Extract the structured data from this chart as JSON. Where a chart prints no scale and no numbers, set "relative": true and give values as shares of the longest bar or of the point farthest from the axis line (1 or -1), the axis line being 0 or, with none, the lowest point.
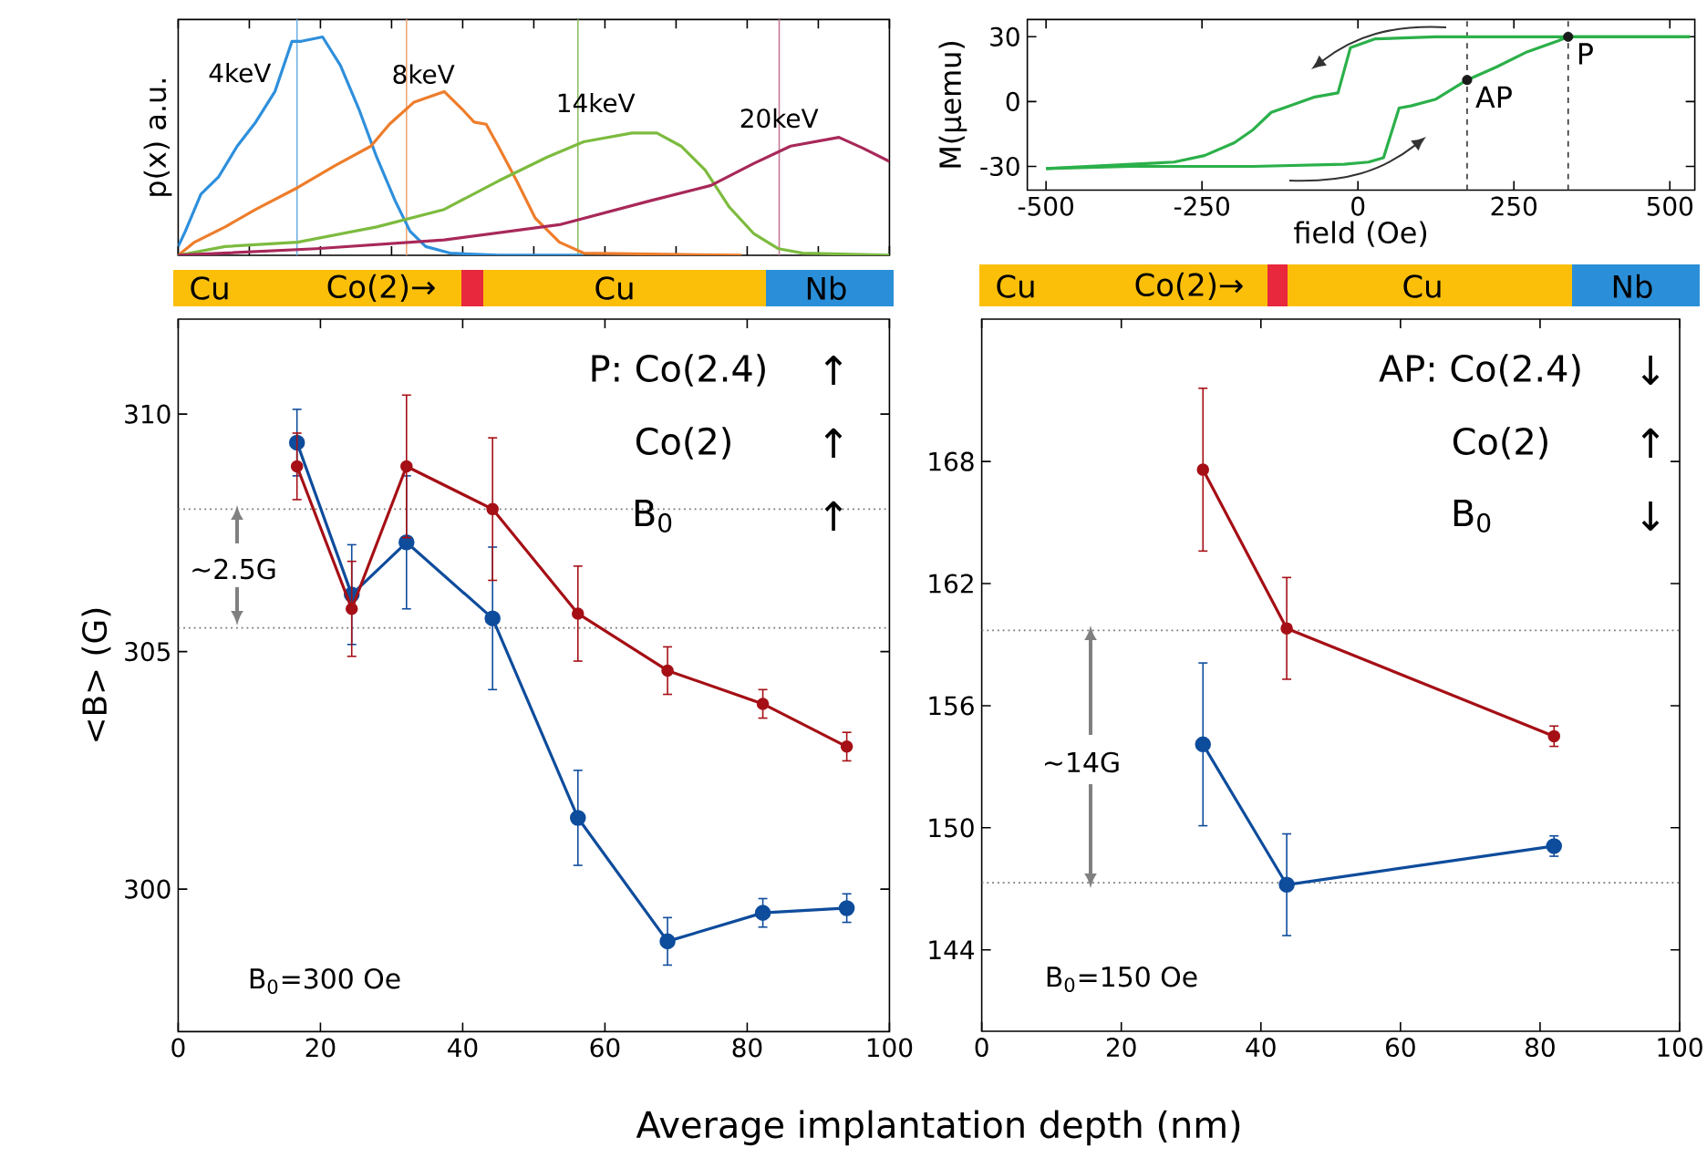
{
  "chart_data": [
    {
      "type": "line",
      "ylabel": "p(x) a.u.",
      "relative": true,
      "xlim": [
        0,
        100
      ],
      "xticks": [
        0,
        10,
        20,
        30,
        40,
        50,
        60,
        70,
        80,
        90,
        100
      ],
      "tick_labels": false,
      "series": [
        {
          "name": "4keV",
          "color": "#2e8fdc",
          "x": [
            0,
            1.0,
            3.2,
            5.7,
            8.3,
            10.9,
            13.6,
            16,
            17.3,
            20.3,
            22.8,
            25.4,
            27.9,
            30.5,
            32.6,
            34.8,
            38.2,
            45,
            57
          ],
          "values": [
            0.04,
            0.11,
            0.28,
            0.36,
            0.5,
            0.61,
            0.75,
            0.98,
            0.98,
            1.0,
            0.87,
            0.67,
            0.45,
            0.25,
            0.11,
            0.04,
            0.01,
            0,
            0
          ]
        },
        {
          "name": "8keV",
          "color": "#ee7d2b",
          "x": [
            0,
            2.3,
            6.6,
            10.9,
            16.8,
            22,
            27.1,
            29.7,
            33.1,
            37.4,
            39.9,
            41.6,
            43.3,
            45,
            47.6,
            50.2,
            53.6,
            57,
            79.2
          ],
          "values": [
            0,
            0.06,
            0.13,
            0.21,
            0.31,
            0.41,
            0.5,
            0.6,
            0.7,
            0.75,
            0.67,
            0.61,
            0.6,
            0.5,
            0.34,
            0.17,
            0.06,
            0.01,
            0
          ]
        },
        {
          "name": "14keV",
          "color": "#7dbb3f",
          "x": [
            0,
            6.6,
            16.8,
            27.9,
            37.4,
            45,
            51.9,
            57,
            63.8,
            67.3,
            70.7,
            74.1,
            77.5,
            80.9,
            84.4,
            87.8,
            100
          ],
          "values": [
            0,
            0.04,
            0.06,
            0.13,
            0.21,
            0.34,
            0.45,
            0.52,
            0.56,
            0.56,
            0.5,
            0.39,
            0.22,
            0.1,
            0.03,
            0.01,
            0
          ]
        },
        {
          "name": "20keV",
          "color": "#a8285a",
          "x": [
            0,
            19.4,
            37.4,
            53.6,
            66.4,
            74.9,
            80.9,
            86.1,
            92.9,
            96.3,
            100
          ],
          "values": [
            0,
            0.03,
            0.07,
            0.14,
            0.25,
            0.32,
            0.42,
            0.5,
            0.54,
            0.49,
            0.43
          ]
        }
      ],
      "ref_lines": [
        {
          "axis": "x",
          "value": 16.7,
          "color": "#6fb0e6"
        },
        {
          "axis": "x",
          "value": 32.1,
          "color": "#f0a878"
        },
        {
          "axis": "x",
          "value": 56.2,
          "color": "#8cc060"
        },
        {
          "axis": "x",
          "value": 84.5,
          "color": "#c47a98"
        }
      ],
      "annotations": [
        "Cu",
        "Co(2)→",
        "Cu",
        "Nb"
      ]
    },
    {
      "type": "line",
      "xlabel": "field (Oe)",
      "ylabel": "M(μemu)",
      "xlim": [
        -530,
        540
      ],
      "ylim": [
        -41,
        38
      ],
      "xticks": [
        -500,
        -250,
        0,
        250,
        500
      ],
      "yticks": [
        -30,
        0,
        30
      ],
      "series": [
        {
          "color": "#2bb04a",
          "x": [
            -500,
            -363,
            -168,
            -22,
            17,
            41,
            66,
            85,
            124,
            175,
            222,
            271,
            320,
            337,
            532
          ],
          "values": [
            -31,
            -30,
            -30,
            -29,
            -28,
            -26,
            -3,
            -2,
            1,
            10,
            16,
            23,
            28,
            30,
            30
          ]
        },
        {
          "color": "#2bb04a",
          "x": [
            532,
            339,
            124,
            27,
            -12,
            -32,
            -71,
            -110,
            -139,
            -168,
            -198,
            -246,
            -295,
            -363,
            -500
          ],
          "values": [
            30,
            30,
            30,
            29,
            25,
            4,
            2,
            -2,
            -5,
            -13,
            -19,
            -25,
            -28,
            -29,
            -31
          ]
        },
        {
          "type": "scatter",
          "marker": "circle",
          "color": "#1a1a1a",
          "x": [
            175,
            337
          ],
          "values": [
            10,
            30
          ]
        }
      ],
      "ref_lines": [
        {
          "axis": "x",
          "value": 175,
          "color": "#333333",
          "line_style": "dashed"
        },
        {
          "axis": "x",
          "value": 337,
          "color": "#333333",
          "line_style": "dashed"
        }
      ],
      "annotations": [
        "Cu",
        "Co(2)→",
        "Cu",
        "Nb",
        {
          "text": "AP",
          "x": 175,
          "y": 10
        },
        {
          "text": "P",
          "x": 337,
          "y": 30
        }
      ]
    },
    {
      "type": "line",
      "xlabel": "Average implantation depth (nm)",
      "ylabel": "<B> (G)",
      "xlim": [
        0,
        100
      ],
      "ylim": [
        297,
        312
      ],
      "xticks": [
        0,
        20,
        40,
        60,
        80,
        100
      ],
      "yticks": [
        300,
        305,
        310
      ],
      "marker": "circle",
      "x": [
        16.7,
        24.4,
        32.1,
        44.2,
        56.2,
        68.8,
        82.2,
        94.0
      ],
      "series": [
        {
          "color": "#0e4c9c",
          "values": [
            309.4,
            306.2,
            307.3,
            305.7,
            301.5,
            298.9,
            299.5,
            299.6
          ],
          "errors": [
            0.7,
            1.05,
            1.4,
            1.5,
            1.0,
            0.5,
            0.3,
            0.3
          ]
        },
        {
          "color": "#a50f15",
          "values": [
            308.9,
            305.9,
            308.9,
            308.0,
            305.8,
            304.6,
            303.9,
            303.0
          ],
          "errors": [
            0.7,
            1.0,
            1.5,
            1.5,
            1.0,
            0.5,
            0.3,
            0.3
          ]
        }
      ],
      "ref_lines": [
        {
          "axis": "y",
          "value": 308.0,
          "color": "#777777",
          "line_style": "dotted"
        },
        {
          "axis": "y",
          "value": 305.5,
          "color": "#777777",
          "line_style": "dotted"
        }
      ],
      "annotations": [
        "P: Co(2.4)",
        "Co(2)",
        "B$_{0}$",
        "↑",
        "↑",
        "↑",
        "B$_{0}$=300 Oe",
        "~2.5G"
      ]
    },
    {
      "type": "line",
      "xlim": [
        0,
        100
      ],
      "ylim": [
        140,
        175
      ],
      "xticks": [
        0,
        20,
        40,
        60,
        80,
        100
      ],
      "yticks": [
        144,
        150,
        156,
        162,
        168
      ],
      "marker": "circle",
      "x": [
        31.7,
        43.7,
        82.0
      ],
      "series": [
        {
          "color": "#0e4c9c",
          "values": [
            154.1,
            147.2,
            149.1
          ],
          "errors": [
            4.0,
            2.5,
            0.5
          ]
        },
        {
          "color": "#a50f15",
          "values": [
            167.6,
            159.8,
            154.5
          ],
          "errors": [
            4.0,
            2.5,
            0.5
          ]
        }
      ],
      "ref_lines": [
        {
          "axis": "y",
          "value": 159.7,
          "color": "#777777",
          "line_style": "dotted"
        },
        {
          "axis": "y",
          "value": 147.3,
          "color": "#777777",
          "line_style": "dotted"
        }
      ],
      "annotations": [
        "AP: Co(2.4)",
        "Co(2)",
        "B$_{0}$",
        "↓",
        "↑",
        "↓",
        "B$_{0}$=150 Oe",
        "~14G"
      ]
    }
  ]
}
